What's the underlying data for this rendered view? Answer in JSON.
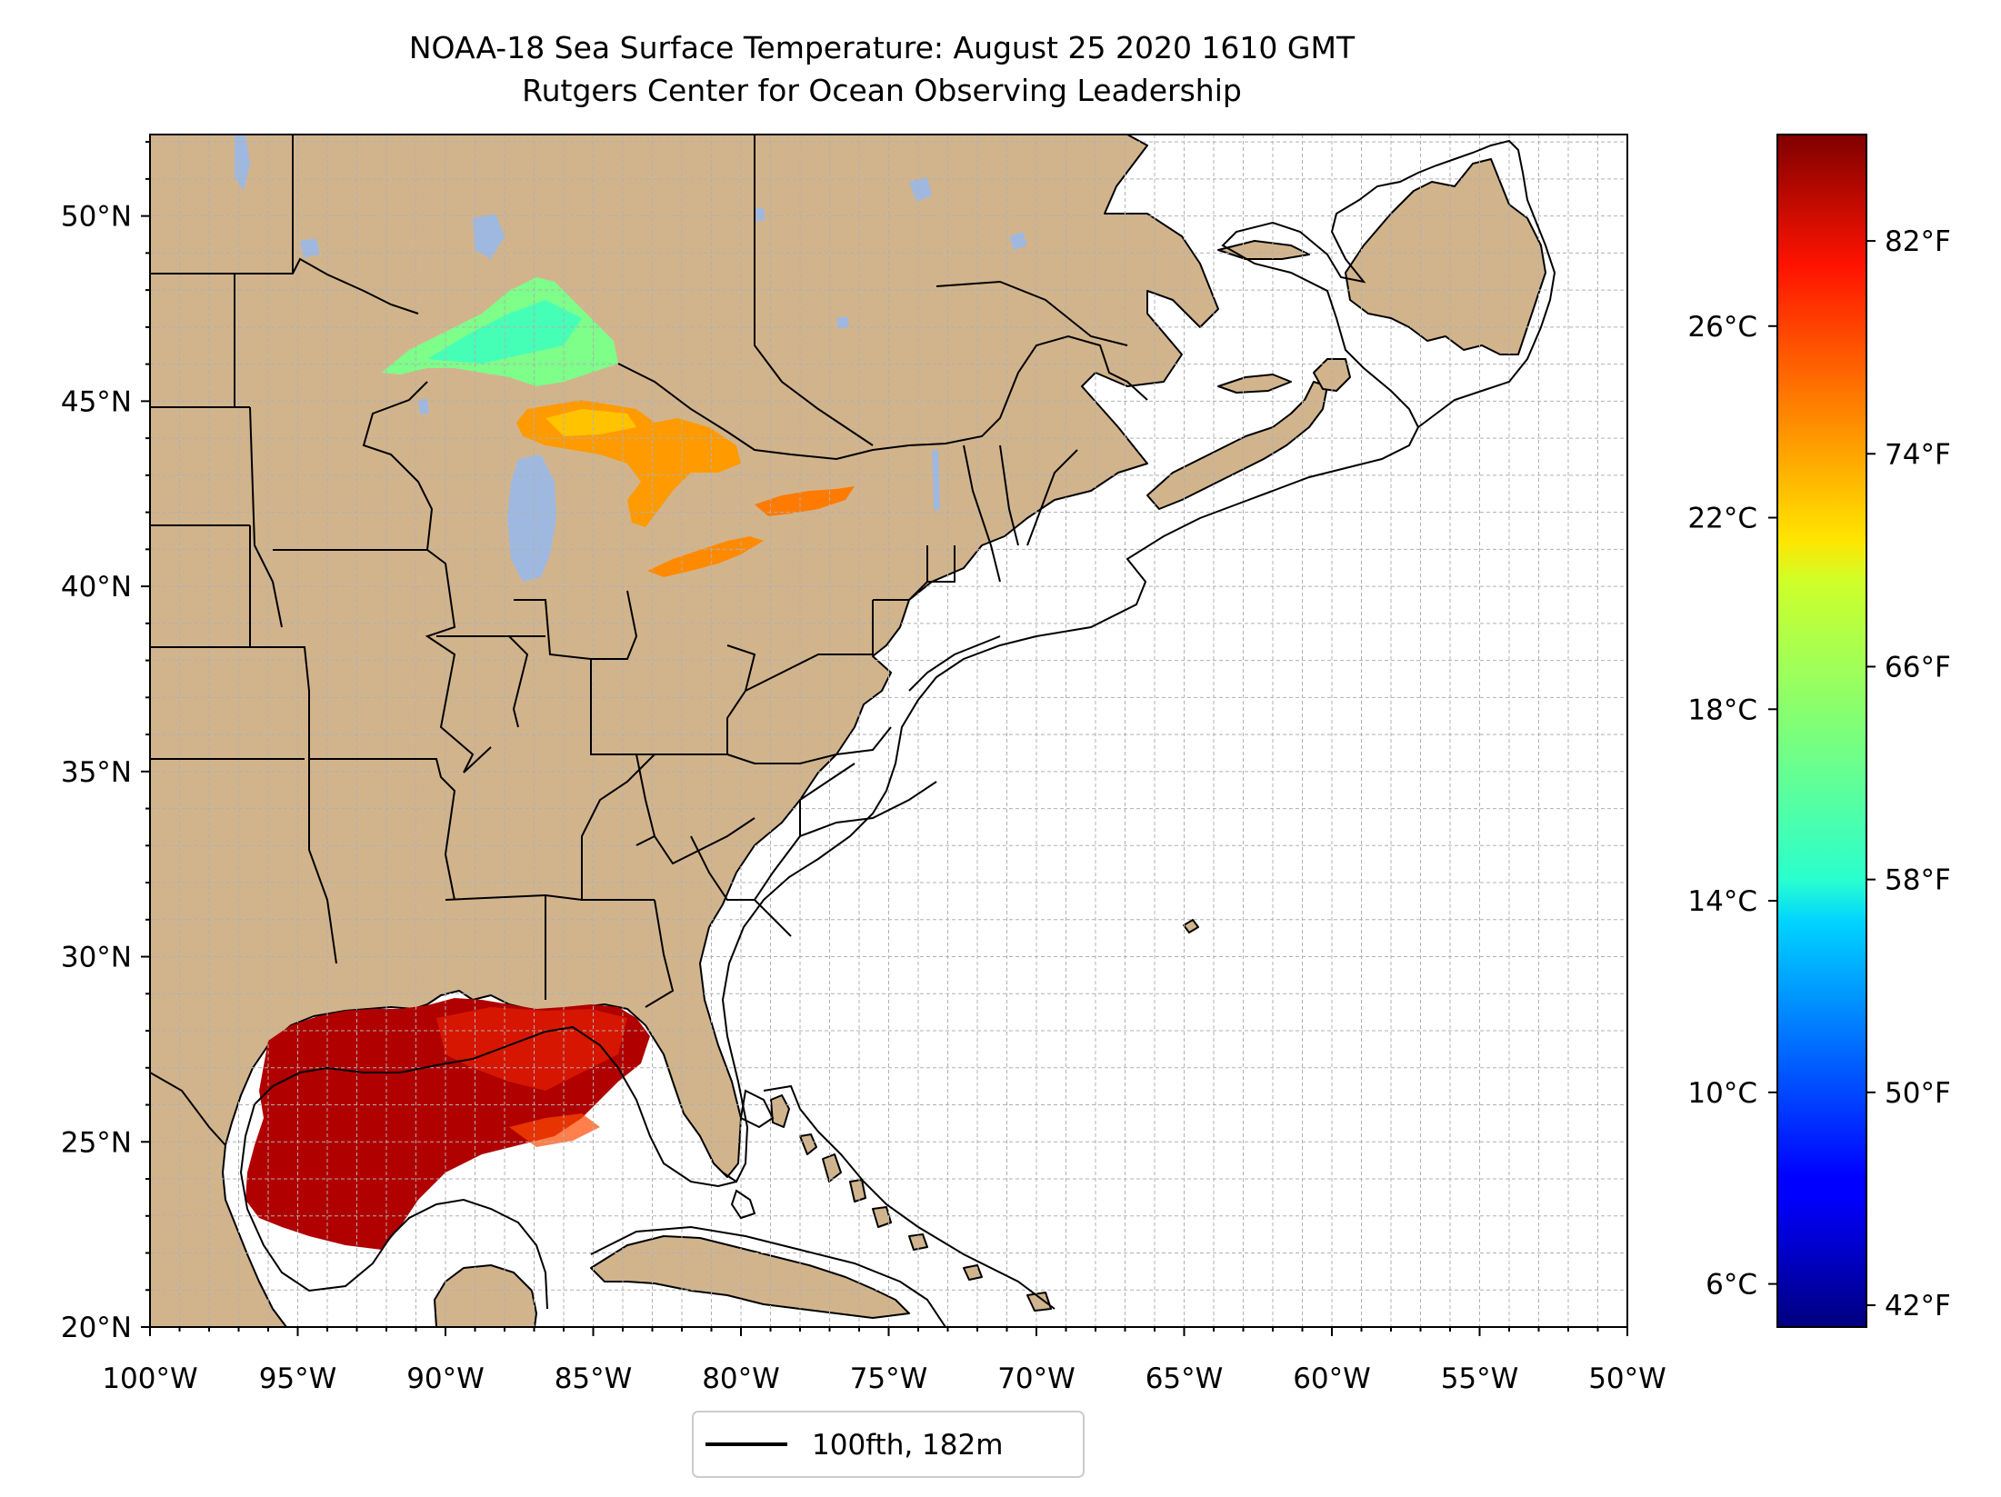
{
  "title": {
    "line1": "NOAA-18 Sea Surface Temperature: August 25 2020 1610 GMT",
    "line2": "Rutgers Center for Ocean Observing Leadership"
  },
  "map": {
    "lon_range": [
      -100,
      -50
    ],
    "lat_range": [
      20,
      52.2
    ],
    "x_ticks": [
      {
        "lon": -100,
        "label": "100°W"
      },
      {
        "lon": -95,
        "label": "95°W"
      },
      {
        "lon": -90,
        "label": "90°W"
      },
      {
        "lon": -85,
        "label": "85°W"
      },
      {
        "lon": -80,
        "label": "80°W"
      },
      {
        "lon": -75,
        "label": "75°W"
      },
      {
        "lon": -70,
        "label": "70°W"
      },
      {
        "lon": -65,
        "label": "65°W"
      },
      {
        "lon": -60,
        "label": "60°W"
      },
      {
        "lon": -55,
        "label": "55°W"
      },
      {
        "lon": -50,
        "label": "50°W"
      }
    ],
    "y_ticks": [
      {
        "lat": 20,
        "label": "20°N"
      },
      {
        "lat": 25,
        "label": "25°N"
      },
      {
        "lat": 30,
        "label": "30°N"
      },
      {
        "lat": 35,
        "label": "35°N"
      },
      {
        "lat": 40,
        "label": "40°N"
      },
      {
        "lat": 45,
        "label": "45°N"
      },
      {
        "lat": 50,
        "label": "50°N"
      }
    ],
    "grid_step_deg": 1,
    "colors": {
      "land": "#d2b48c",
      "lakes": "#9fb8e0",
      "ocean": "#ffffff",
      "grid": "#b0b0b0",
      "coast": "#000000"
    }
  },
  "colorbar": {
    "colormap": "jet",
    "celsius_range": [
      5.1,
      30.0
    ],
    "celsius_ticks": [
      {
        "value": 6,
        "label": "6°C"
      },
      {
        "value": 10,
        "label": "10°C"
      },
      {
        "value": 14,
        "label": "14°C"
      },
      {
        "value": 18,
        "label": "18°C"
      },
      {
        "value": 22,
        "label": "22°C"
      },
      {
        "value": 26,
        "label": "26°C"
      }
    ],
    "fahrenheit_ticks": [
      {
        "value": 42,
        "label": "42°F"
      },
      {
        "value": 50,
        "label": "50°F"
      },
      {
        "value": 58,
        "label": "58°F"
      },
      {
        "value": 66,
        "label": "66°F"
      },
      {
        "value": 74,
        "label": "74°F"
      },
      {
        "value": 82,
        "label": "82°F"
      }
    ]
  },
  "legend": {
    "label": "100fth, 182m",
    "line_color": "#000000"
  }
}
